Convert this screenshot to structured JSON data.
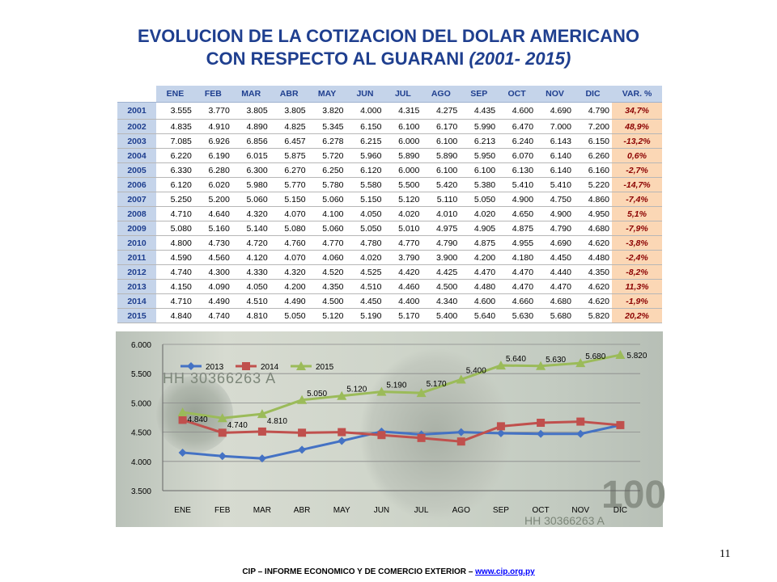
{
  "title_line1": "EVOLUCION DE LA COTIZACION DEL DOLAR  AMERICANO",
  "title_line2_a": "CON RESPECTO AL GUARANI ",
  "title_line2_b": "(2001- 2015)",
  "table": {
    "headers": [
      "ENE",
      "FEB",
      "MAR",
      "ABR",
      "MAY",
      "JUN",
      "JUL",
      "AGO",
      "SEP",
      "OCT",
      "NOV",
      "DIC",
      "VAR. %"
    ],
    "rows": [
      {
        "year": "2001",
        "values": [
          "3.555",
          "3.770",
          "3.805",
          "3.805",
          "3.820",
          "4.000",
          "4.315",
          "4.275",
          "4.435",
          "4.600",
          "4.690",
          "4.790"
        ],
        "var": "34,7%"
      },
      {
        "year": "2002",
        "values": [
          "4.835",
          "4.910",
          "4.890",
          "4.825",
          "5.345",
          "6.150",
          "6.100",
          "6.170",
          "5.990",
          "6.470",
          "7.000",
          "7.200"
        ],
        "var": "48,9%"
      },
      {
        "year": "2003",
        "values": [
          "7.085",
          "6.926",
          "6.856",
          "6.457",
          "6.278",
          "6.215",
          "6.000",
          "6.100",
          "6.213",
          "6.240",
          "6.143",
          "6.150"
        ],
        "var": "-13,2%"
      },
      {
        "year": "2004",
        "values": [
          "6.220",
          "6.190",
          "6.015",
          "5.875",
          "5.720",
          "5.960",
          "5.890",
          "5.890",
          "5.950",
          "6.070",
          "6.140",
          "6.260"
        ],
        "var": "0,6%"
      },
      {
        "year": "2005",
        "values": [
          "6.330",
          "6.280",
          "6.300",
          "6.270",
          "6.250",
          "6.120",
          "6.000",
          "6.100",
          "6.100",
          "6.130",
          "6.140",
          "6.160"
        ],
        "var": "-2,7%"
      },
      {
        "year": "2006",
        "values": [
          "6.120",
          "6.020",
          "5.980",
          "5.770",
          "5.780",
          "5.580",
          "5.500",
          "5.420",
          "5.380",
          "5.410",
          "5.410",
          "5.220"
        ],
        "var": "-14,7%"
      },
      {
        "year": "2007",
        "values": [
          "5.250",
          "5.200",
          "5.060",
          "5.150",
          "5.060",
          "5.150",
          "5.120",
          "5.110",
          "5.050",
          "4.900",
          "4.750",
          "4.860"
        ],
        "var": "-7,4%"
      },
      {
        "year": "2008",
        "values": [
          "4.710",
          "4.640",
          "4.320",
          "4.070",
          "4.100",
          "4.050",
          "4.020",
          "4.010",
          "4.020",
          "4.650",
          "4.900",
          "4.950"
        ],
        "var": "5,1%"
      },
      {
        "year": "2009",
        "values": [
          "5.080",
          "5.160",
          "5.140",
          "5.080",
          "5.060",
          "5.050",
          "5.010",
          "4.975",
          "4.905",
          "4.875",
          "4.790",
          "4.680"
        ],
        "var": "-7,9%"
      },
      {
        "year": "2010",
        "values": [
          "4.800",
          "4.730",
          "4.720",
          "4.760",
          "4.770",
          "4.780",
          "4.770",
          "4.790",
          "4.875",
          "4.955",
          "4.690",
          "4.620"
        ],
        "var": "-3,8%"
      },
      {
        "year": "2011",
        "values": [
          "4.590",
          "4.560",
          "4.120",
          "4.070",
          "4.060",
          "4.020",
          "3.790",
          "3.900",
          "4.200",
          "4.180",
          "4.450",
          "4.480"
        ],
        "var": "-2,4%"
      },
      {
        "year": "2012",
        "values": [
          "4.740",
          "4.300",
          "4.330",
          "4.320",
          "4.520",
          "4.525",
          "4.420",
          "4.425",
          "4.470",
          "4.470",
          "4.440",
          "4.350"
        ],
        "var": "-8,2%"
      },
      {
        "year": "2013",
        "values": [
          "4.150",
          "4.090",
          "4.050",
          "4.200",
          "4.350",
          "4.510",
          "4.460",
          "4.500",
          "4.480",
          "4.470",
          "4.470",
          "4.620"
        ],
        "var": "11,3%"
      },
      {
        "year": "2014",
        "values": [
          "4.710",
          "4.490",
          "4.510",
          "4.490",
          "4.500",
          "4.450",
          "4.400",
          "4.340",
          "4.600",
          "4.660",
          "4.680",
          "4.620"
        ],
        "var": "-1,9%"
      },
      {
        "year": "2015",
        "values": [
          "4.840",
          "4.740",
          "4.810",
          "5.050",
          "5.120",
          "5.190",
          "5.170",
          "5.400",
          "5.640",
          "5.630",
          "5.680",
          "5.820"
        ],
        "var": "20,2%"
      }
    ]
  },
  "chart_data": {
    "type": "line",
    "categories": [
      "ENE",
      "FEB",
      "MAR",
      "ABR",
      "MAY",
      "JUN",
      "JUL",
      "AGO",
      "SEP",
      "OCT",
      "NOV",
      "DIC"
    ],
    "y_tick_labels": [
      "3.500",
      "4.000",
      "4.500",
      "5.000",
      "5.500",
      "6.000"
    ],
    "ylim": [
      3500,
      6000
    ],
    "legend_position": "top-left",
    "series": [
      {
        "name": "2013",
        "color": "#4472c4",
        "marker": "diamond",
        "values": [
          4150,
          4090,
          4050,
          4200,
          4350,
          4510,
          4460,
          4500,
          4480,
          4470,
          4470,
          4620
        ],
        "labels": []
      },
      {
        "name": "2014",
        "color": "#c0504d",
        "marker": "square",
        "values": [
          4710,
          4490,
          4510,
          4490,
          4500,
          4450,
          4400,
          4340,
          4600,
          4660,
          4680,
          4620
        ],
        "labels": []
      },
      {
        "name": "2015",
        "color": "#9bbb59",
        "marker": "triangle",
        "values": [
          4840,
          4740,
          4810,
          5050,
          5120,
          5190,
          5170,
          5400,
          5640,
          5630,
          5680,
          5820
        ],
        "labels": [
          "4.840",
          "4.740",
          "4.810",
          "5.050",
          "5.120",
          "5.190",
          "5.170",
          "5.400",
          "5.640",
          "5.630",
          "5.680",
          "5.820"
        ]
      }
    ]
  },
  "background_serial_1": "HH 30366263 A",
  "background_serial_2": "HH 30366263 A",
  "background_denomination": "100",
  "footer_text": "CIP – INFORME ECONOMICO Y DE COMERCIO EXTERIOR – ",
  "footer_link": "www.cip.org.py",
  "page_number": "11"
}
